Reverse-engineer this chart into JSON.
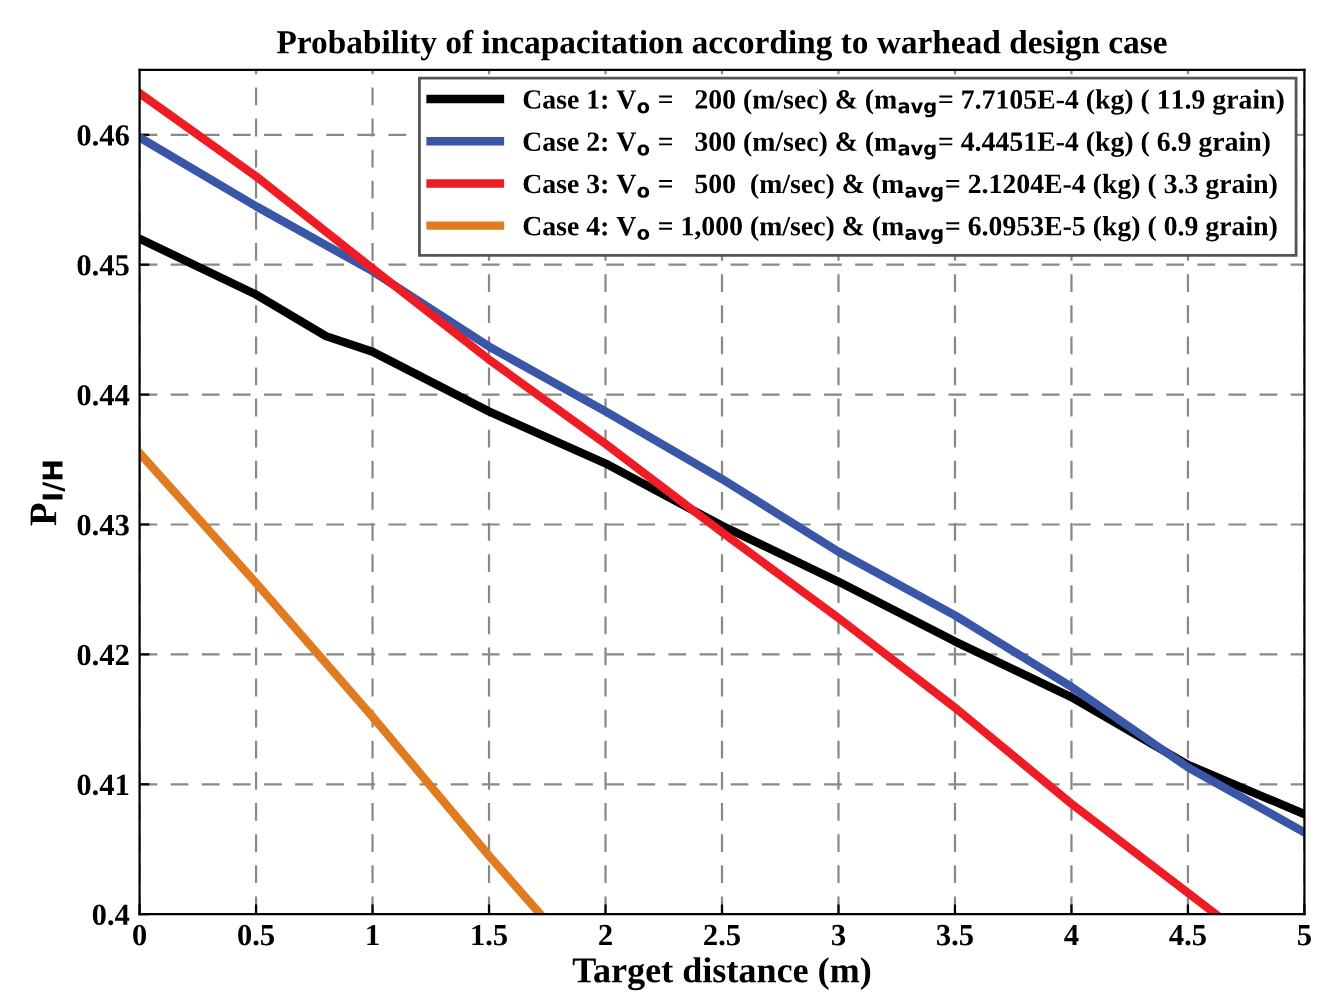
{
  "chart_data": {
    "type": "line",
    "title": "Probability of incapacitation according to warhead design case",
    "xlabel": "Target distance (m)",
    "ylabel": "P$_{I/H}$",
    "xlim": [
      0,
      5
    ],
    "xticks": [
      0,
      0.5,
      1,
      1.5,
      2,
      2.5,
      3,
      3.5,
      4,
      4.5,
      5
    ],
    "ylim": [
      0.4,
      0.465
    ],
    "yticks": [
      0.4,
      0.41,
      0.42,
      0.43,
      0.44,
      0.45,
      0.46
    ],
    "grid": true,
    "legend": "top right",
    "line_style": "solid",
    "marker": "none",
    "series": [
      {
        "name": "Case 1: V$_{o}$ =   200 (m/sec) & (m$_{avg}$= 7.7105E-4 (kg) ( 11.9 grain)",
        "color": "#000000",
        "x": [
          0,
          0.5,
          0.8,
          1,
          1.5,
          2,
          2.5,
          3,
          3.5,
          4,
          4.5,
          5
        ],
        "values": [
          0.452,
          0.4477,
          0.4445,
          0.4433,
          0.4387,
          0.4347,
          0.4299,
          0.4256,
          0.421,
          0.4167,
          0.4115,
          0.4077
        ]
      },
      {
        "name": "Case 2: V$_{o}$ =   300 (m/sec) & (m$_{avg}$= 4.4451E-4 (kg) ( 6.9 grain)",
        "color": "#3a56a8",
        "x": [
          0,
          0.5,
          1,
          1.5,
          2,
          2.5,
          3,
          3.5,
          4,
          4.5,
          5
        ],
        "values": [
          0.4598,
          0.4545,
          0.4495,
          0.4437,
          0.4387,
          0.4335,
          0.4279,
          0.423,
          0.4175,
          0.4113,
          0.4063
        ]
      },
      {
        "name": "Case 3: V$_{o}$ =   500  (m/sec) & (m$_{avg}$= 2.1204E-4 (kg) ( 3.3 grain)",
        "color": "#ee1c24",
        "x": [
          0,
          0.5,
          1,
          1.5,
          2,
          2.5,
          3,
          3.5,
          4,
          4.62
        ],
        "values": [
          0.4632,
          0.4568,
          0.4497,
          0.4427,
          0.4362,
          0.4294,
          0.4228,
          0.4159,
          0.4085,
          0.4
        ]
      },
      {
        "name": "Case 4: V$_{o}$ = 1,000 (m/sec) & (m$_{avg}$= 6.0953E-5 (kg) ( 0.9 grain)",
        "color": "#e07b20",
        "x": [
          0,
          0.5,
          1,
          1.5,
          1.72
        ],
        "values": [
          0.4355,
          0.4255,
          0.4152,
          0.4045,
          0.4
        ]
      }
    ]
  }
}
